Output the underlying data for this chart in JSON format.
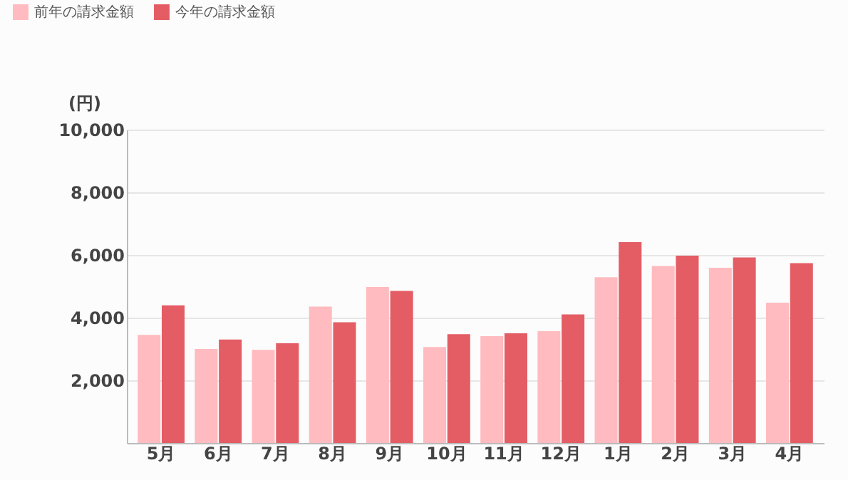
{
  "chart_data": {
    "type": "bar",
    "ylabel": "(円)",
    "categories": [
      "5月",
      "6月",
      "7月",
      "8月",
      "9月",
      "10月",
      "11月",
      "12月",
      "1月",
      "2月",
      "3月",
      "4月"
    ],
    "series": [
      {
        "name": "前年の請求金額",
        "color": "#ffbbbf",
        "values": [
          3450,
          3000,
          2970,
          4350,
          4980,
          3060,
          3410,
          3570,
          5290,
          5650,
          5590,
          4480
        ]
      },
      {
        "name": "今年の請求金額",
        "color": "#e45c64",
        "values": [
          4390,
          3300,
          3180,
          3850,
          4850,
          3470,
          3500,
          4100,
          6410,
          5980,
          5920,
          5740
        ]
      }
    ],
    "ylim": [
      0,
      10000
    ],
    "yticks": [
      {
        "value": 0,
        "label": null
      },
      {
        "value": 2000,
        "label": "2,000"
      },
      {
        "value": 4000,
        "label": "4,000"
      },
      {
        "value": 6000,
        "label": "6,000"
      },
      {
        "value": 8000,
        "label": "8,000"
      },
      {
        "value": 10000,
        "label": "10,000"
      }
    ],
    "grid": "y",
    "legend": "top left"
  }
}
